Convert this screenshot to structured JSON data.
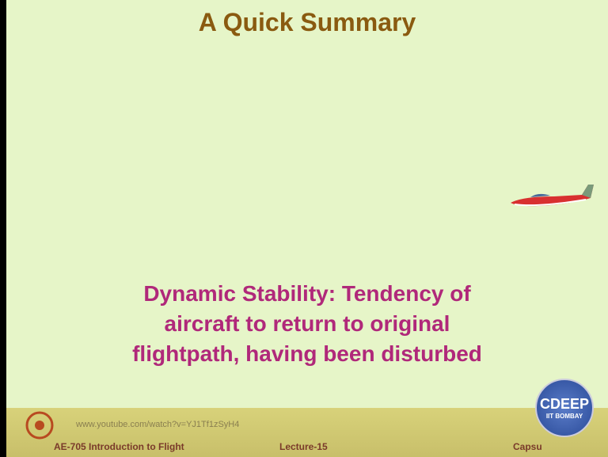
{
  "slide": {
    "title": "A Quick Summary",
    "body": [
      "Dynamic Stability: Tendency of",
      "aircraft to return to original",
      "flightpath, having been disturbed"
    ],
    "footer": {
      "url": "www.youtube.com/watch?v=YJ1Tf1zSyH4",
      "course": "AE-705 Introduction to Flight",
      "lecture": "Lecture-15",
      "capsule": "Capsu"
    },
    "badge": {
      "name": "CDEEP",
      "org": "IIT BOMBAY"
    }
  }
}
